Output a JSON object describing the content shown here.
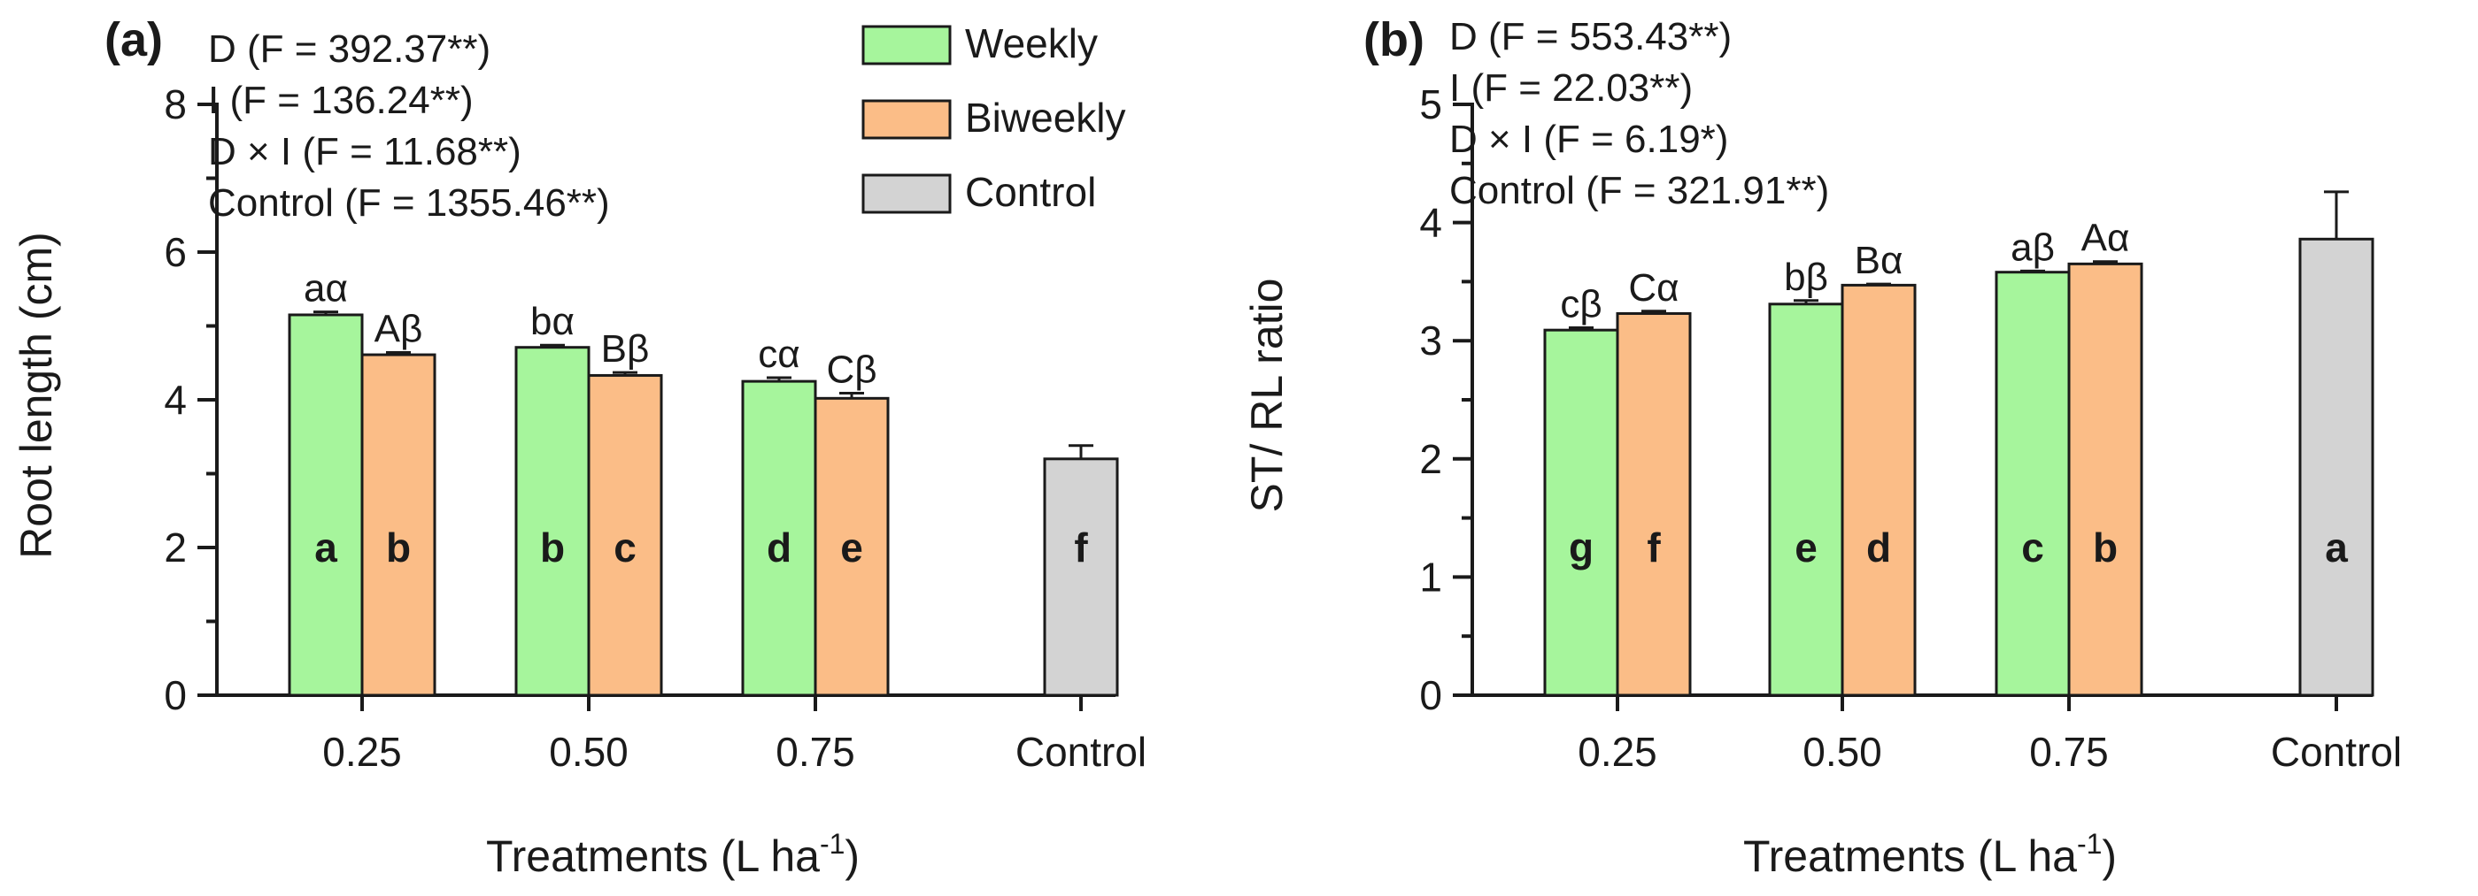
{
  "legend": {
    "entries": [
      {
        "label": "Weekly",
        "color": "#a6f59c"
      },
      {
        "label": "Biweekly",
        "color": "#fbbd87"
      },
      {
        "label": "Control",
        "color": "#d3d3d3"
      }
    ]
  },
  "chart_data": [
    {
      "type": "bar",
      "panel_label": "(a)",
      "ylabel": "Root length (cm)",
      "xlabel": "Treatments (L ha",
      "xlabel_sup": "-1",
      "xlabel_end": ")",
      "ylim": [
        0,
        8
      ],
      "yticks": [
        "0",
        "2",
        "4",
        "6",
        "8"
      ],
      "stats": [
        "D (F = 392.37**)",
        "I (F = 136.24**)",
        "D × I (F = 11.68**)",
        "Control (F = 1355.46**)"
      ],
      "categories": [
        "0.25",
        "0.50",
        "0.75",
        "Control"
      ],
      "bars": [
        {
          "series": "Weekly",
          "cat": 0,
          "value": 5.15,
          "err": 0.04,
          "top_label": "aα",
          "inner_label": "a"
        },
        {
          "series": "Biweekly",
          "cat": 0,
          "value": 4.61,
          "err": 0.03,
          "top_label": "Aβ",
          "inner_label": "b"
        },
        {
          "series": "Weekly",
          "cat": 1,
          "value": 4.71,
          "err": 0.03,
          "top_label": "bα",
          "inner_label": "b"
        },
        {
          "series": "Biweekly",
          "cat": 1,
          "value": 4.33,
          "err": 0.04,
          "top_label": "Bβ",
          "inner_label": "c"
        },
        {
          "series": "Weekly",
          "cat": 2,
          "value": 4.25,
          "err": 0.05,
          "top_label": "cα",
          "inner_label": "d"
        },
        {
          "series": "Biweekly",
          "cat": 2,
          "value": 4.02,
          "err": 0.07,
          "top_label": "Cβ",
          "inner_label": "e"
        },
        {
          "series": "Control",
          "cat": 3,
          "value": 3.2,
          "err": 0.18,
          "top_label": "",
          "inner_label": "f"
        }
      ]
    },
    {
      "type": "bar",
      "panel_label": "(b)",
      "ylabel": "ST/ RL ratio",
      "xlabel": "Treatments (L ha",
      "xlabel_sup": "-1",
      "xlabel_end": ")",
      "ylim": [
        0,
        5
      ],
      "yticks": [
        "0",
        "1",
        "2",
        "3",
        "4",
        "5"
      ],
      "stats": [
        "D (F = 553.43**)",
        "I (F = 22.03**)",
        "D × I (F = 6.19*)",
        "Control (F = 321.91**)"
      ],
      "categories": [
        "0.25",
        "0.50",
        "0.75",
        "Control"
      ],
      "bars": [
        {
          "series": "Weekly",
          "cat": 0,
          "value": 3.09,
          "err": 0.02,
          "top_label": "cβ",
          "inner_label": "g"
        },
        {
          "series": "Biweekly",
          "cat": 0,
          "value": 3.23,
          "err": 0.02,
          "top_label": "Cα",
          "inner_label": "f"
        },
        {
          "series": "Weekly",
          "cat": 1,
          "value": 3.31,
          "err": 0.03,
          "top_label": "bβ",
          "inner_label": "e"
        },
        {
          "series": "Biweekly",
          "cat": 1,
          "value": 3.47,
          "err": 0.01,
          "top_label": "Bα",
          "inner_label": "d"
        },
        {
          "series": "Weekly",
          "cat": 2,
          "value": 3.58,
          "err": 0.01,
          "top_label": "aβ",
          "inner_label": "c"
        },
        {
          "series": "Biweekly",
          "cat": 2,
          "value": 3.65,
          "err": 0.02,
          "top_label": "Aα",
          "inner_label": "b"
        },
        {
          "series": "Control",
          "cat": 3,
          "value": 3.86,
          "err": 0.4,
          "top_label": "",
          "inner_label": "a"
        }
      ]
    }
  ]
}
